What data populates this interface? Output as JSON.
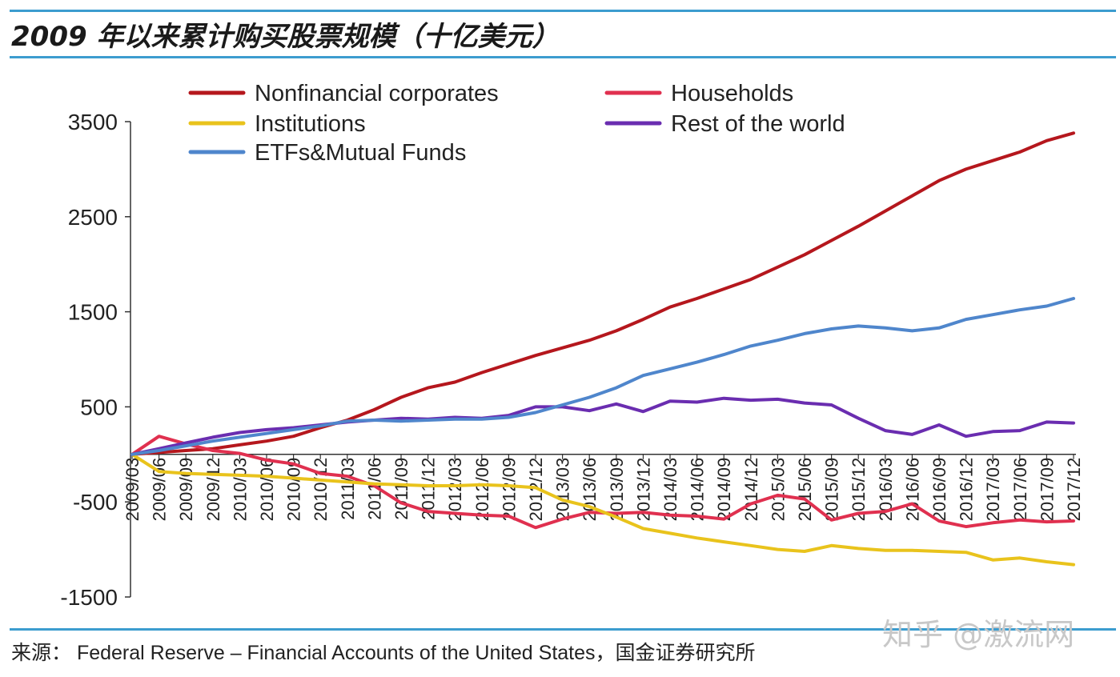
{
  "title": "2009 年以来累计购买股票规模（十亿美元）",
  "source": "来源： Federal Reserve – Financial Accounts of the United States，国金证券研究所",
  "watermark": "知乎 @激流网",
  "chart_data": {
    "type": "line",
    "title": "2009 年以来累计购买股票规模（十亿美元）",
    "xlabel": "",
    "ylabel": "",
    "ylim": [
      -1500,
      3500
    ],
    "yticks": [
      3500,
      2500,
      1500,
      500,
      -500,
      -1500
    ],
    "grid": false,
    "legend_position": "top",
    "x": [
      "2009/03",
      "2009/06",
      "2009/09",
      "2009/12",
      "2010/03",
      "2010/06",
      "2010/09",
      "2010/12",
      "2011/03",
      "2011/06",
      "2011/09",
      "2011/12",
      "2012/03",
      "2012/06",
      "2012/09",
      "2012/12",
      "2013/03",
      "2013/06",
      "2013/09",
      "2013/12",
      "2014/03",
      "2014/06",
      "2014/09",
      "2014/12",
      "2015/03",
      "2015/06",
      "2015/09",
      "2015/12",
      "2016/03",
      "2016/06",
      "2016/09",
      "2016/12",
      "2017/03",
      "2017/06",
      "2017/09",
      "2017/12"
    ],
    "series": [
      {
        "name": "Nonfinancial corporates",
        "color": "#b5171d",
        "values": [
          0,
          20,
          40,
          60,
          100,
          140,
          190,
          280,
          360,
          470,
          600,
          700,
          760,
          860,
          950,
          1040,
          1120,
          1200,
          1300,
          1420,
          1550,
          1640,
          1740,
          1840,
          1970,
          2100,
          2250,
          2400,
          2560,
          2720,
          2880,
          3000,
          3090,
          3180,
          3300,
          3380
        ]
      },
      {
        "name": "Households",
        "color": "#e0304f",
        "values": [
          0,
          190,
          110,
          40,
          10,
          -60,
          -100,
          -200,
          -230,
          -330,
          -510,
          -600,
          -620,
          -640,
          -650,
          -770,
          -680,
          -610,
          -620,
          -610,
          -640,
          -650,
          -680,
          -520,
          -430,
          -470,
          -690,
          -620,
          -600,
          -520,
          -700,
          -760,
          -720,
          -690,
          -710,
          -700
        ]
      },
      {
        "name": "Institutions",
        "color": "#e9c31c",
        "values": [
          0,
          -180,
          -200,
          -210,
          -220,
          -230,
          -250,
          -270,
          -290,
          -310,
          -320,
          -330,
          -330,
          -320,
          -330,
          -350,
          -480,
          -550,
          -660,
          -780,
          -830,
          -880,
          -920,
          -960,
          -1000,
          -1020,
          -960,
          -990,
          -1010,
          -1010,
          -1020,
          -1030,
          -1110,
          -1090,
          -1130,
          -1160
        ]
      },
      {
        "name": "Rest of the world",
        "color": "#6a2db0",
        "values": [
          0,
          60,
          120,
          180,
          230,
          260,
          280,
          310,
          340,
          360,
          380,
          370,
          390,
          380,
          410,
          500,
          500,
          460,
          530,
          450,
          560,
          550,
          590,
          570,
          580,
          540,
          520,
          380,
          250,
          210,
          310,
          190,
          240,
          250,
          340,
          330
        ]
      },
      {
        "name": "ETFs&Mutual Funds",
        "color": "#4f86cc",
        "values": [
          0,
          40,
          90,
          140,
          180,
          220,
          260,
          300,
          350,
          360,
          350,
          360,
          370,
          370,
          390,
          440,
          520,
          600,
          700,
          830,
          900,
          970,
          1050,
          1140,
          1200,
          1270,
          1320,
          1350,
          1330,
          1300,
          1330,
          1420,
          1470,
          1520,
          1560,
          1640
        ]
      }
    ]
  }
}
